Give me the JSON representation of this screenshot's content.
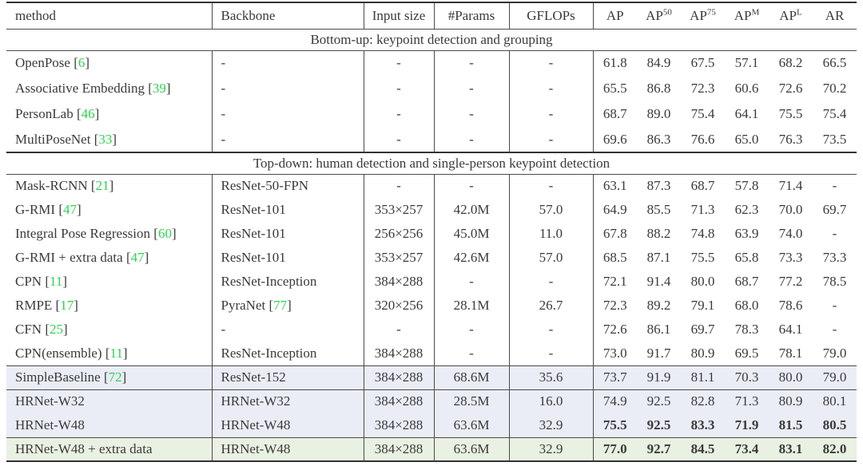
{
  "colors": {
    "citation_green": "#2fd24f",
    "highlight_blue_row": "#eaedf6",
    "highlight_green_row": "#e9f1e2",
    "text": "#3a3a3a",
    "rule": "#333333"
  },
  "table": {
    "header": [
      {
        "label": "method"
      },
      {
        "label": "Backbone"
      },
      {
        "label": "Input size"
      },
      {
        "label": "#Params"
      },
      {
        "label": "GFLOPs"
      },
      {
        "label": "AP"
      },
      {
        "label": "AP",
        "sup": "50"
      },
      {
        "label": "AP",
        "sup": "75"
      },
      {
        "label": "AP",
        "sup": "M"
      },
      {
        "label": "AP",
        "sup": "L"
      },
      {
        "label": "AR"
      }
    ],
    "rows": [
      {
        "type": "section",
        "label": "Bottom-up: keypoint detection and grouping",
        "rule_below": "thin"
      },
      {
        "type": "data",
        "method": "OpenPose",
        "cite": "6",
        "backbone": "-",
        "input_size": "-",
        "params": "-",
        "gflops": "-",
        "metrics": [
          "61.8",
          "84.9",
          "67.5",
          "57.1",
          "68.2",
          "66.5"
        ]
      },
      {
        "type": "data",
        "method": "Associative Embedding",
        "cite": "39",
        "backbone": "-",
        "input_size": "-",
        "params": "-",
        "gflops": "-",
        "metrics": [
          "65.5",
          "86.8",
          "72.3",
          "60.6",
          "72.6",
          "70.2"
        ]
      },
      {
        "type": "data",
        "method": "PersonLab",
        "cite": "46",
        "backbone": "-",
        "input_size": "-",
        "params": "-",
        "gflops": "-",
        "metrics": [
          "68.7",
          "89.0",
          "75.4",
          "64.1",
          "75.5",
          "75.4"
        ]
      },
      {
        "type": "data",
        "method": "MultiPoseNet",
        "cite": "33",
        "backbone": "-",
        "input_size": "-",
        "params": "-",
        "gflops": "-",
        "metrics": [
          "69.6",
          "86.3",
          "76.6",
          "65.0",
          "76.3",
          "73.5"
        ],
        "rule_below": "thick"
      },
      {
        "type": "section",
        "label": "Top-down: human detection and single-person keypoint detection",
        "rule_below": "thin"
      },
      {
        "type": "data",
        "method": "Mask-RCNN",
        "cite": "21",
        "backbone": "ResNet-50-FPN",
        "input_size": "-",
        "params": "-",
        "gflops": "-",
        "metrics": [
          "63.1",
          "87.3",
          "68.7",
          "57.8",
          "71.4",
          "-"
        ]
      },
      {
        "type": "data",
        "method": "G-RMI",
        "cite": "47",
        "backbone": "ResNet-101",
        "input_size": "353×257",
        "params": "42.0M",
        "gflops": "57.0",
        "metrics": [
          "64.9",
          "85.5",
          "71.3",
          "62.3",
          "70.0",
          "69.7"
        ]
      },
      {
        "type": "data",
        "method": "Integral Pose Regression",
        "cite": "60",
        "backbone": "ResNet-101",
        "input_size": "256×256",
        "params": "45.0M",
        "gflops": "11.0",
        "metrics": [
          "67.8",
          "88.2",
          "74.8",
          "63.9",
          "74.0",
          "-"
        ]
      },
      {
        "type": "data",
        "method": "G-RMI + extra data",
        "cite": "47",
        "backbone": "ResNet-101",
        "input_size": "353×257",
        "params": "42.6M",
        "gflops": "57.0",
        "metrics": [
          "68.5",
          "87.1",
          "75.5",
          "65.8",
          "73.3",
          "73.3"
        ]
      },
      {
        "type": "data",
        "method": "CPN",
        "cite": "11",
        "backbone": "ResNet-Inception",
        "input_size": "384×288",
        "params": "-",
        "gflops": "-",
        "metrics": [
          "72.1",
          "91.4",
          "80.0",
          "68.7",
          "77.2",
          "78.5"
        ]
      },
      {
        "type": "data",
        "method": "RMPE",
        "cite": "17",
        "backbone": "PyraNet",
        "backbone_cite": "77",
        "input_size": "320×256",
        "params": "28.1M",
        "gflops": "26.7",
        "metrics": [
          "72.3",
          "89.2",
          "79.1",
          "68.0",
          "78.6",
          "-"
        ]
      },
      {
        "type": "data",
        "method": "CFN",
        "cite": "25",
        "backbone": "-",
        "input_size": "-",
        "params": "-",
        "gflops": "-",
        "metrics": [
          "72.6",
          "86.1",
          "69.7",
          "78.3",
          "64.1",
          "-"
        ]
      },
      {
        "type": "data",
        "method": "CPN(ensemble)",
        "cite": "11",
        "backbone": "ResNet-Inception",
        "input_size": "384×288",
        "params": "-",
        "gflops": "-",
        "metrics": [
          "73.0",
          "91.7",
          "80.9",
          "69.5",
          "78.1",
          "79.0"
        ],
        "rule_below": "thin"
      },
      {
        "type": "data",
        "method": "SimpleBaseline",
        "cite": "72",
        "backbone": "ResNet-152",
        "input_size": "384×288",
        "params": "68.6M",
        "gflops": "35.6",
        "metrics": [
          "73.7",
          "91.9",
          "81.1",
          "70.3",
          "80.0",
          "79.0"
        ],
        "highlight": "blue",
        "rule_below": "thin"
      },
      {
        "type": "data",
        "method": "HRNet-W32",
        "backbone": "HRNet-W32",
        "input_size": "384×288",
        "params": "28.5M",
        "gflops": "16.0",
        "metrics": [
          "74.9",
          "92.5",
          "82.8",
          "71.3",
          "80.9",
          "80.1"
        ],
        "highlight": "blue"
      },
      {
        "type": "data",
        "method": "HRNet-W48",
        "backbone": "HRNet-W48",
        "input_size": "384×288",
        "params": "63.6M",
        "gflops": "32.9",
        "metrics": [
          "75.5",
          "92.5",
          "83.3",
          "71.9",
          "81.5",
          "80.5"
        ],
        "highlight": "blue",
        "bold_metrics": true,
        "rule_below": "thin"
      },
      {
        "type": "data",
        "method": "HRNet-W48 + extra data",
        "backbone": "HRNet-W48",
        "input_size": "384×288",
        "params": "63.6M",
        "gflops": "32.9",
        "metrics": [
          "77.0",
          "92.7",
          "84.5",
          "73.4",
          "83.1",
          "82.0"
        ],
        "highlight": "green",
        "bold_metrics": true,
        "rule_below": "thick"
      }
    ]
  }
}
